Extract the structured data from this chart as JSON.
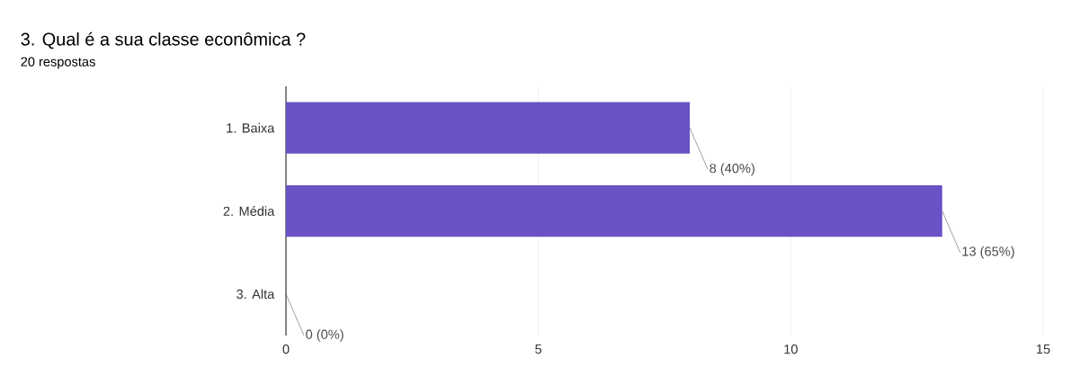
{
  "chart_data": {
    "type": "bar",
    "orientation": "horizontal",
    "title": "3. Qual é a sua classe econômica ?",
    "subtitle": "20 respostas",
    "categories": [
      "1. Baixa",
      "2. Média",
      "3. Alta"
    ],
    "values": [
      8,
      13,
      0
    ],
    "value_labels": [
      "8 (40%)",
      "13 (65%)",
      "0 (0%)"
    ],
    "color": "#6a51c6",
    "xlim": [
      0,
      15
    ],
    "xticks": [
      0,
      5,
      10,
      15
    ],
    "grid": "x"
  }
}
